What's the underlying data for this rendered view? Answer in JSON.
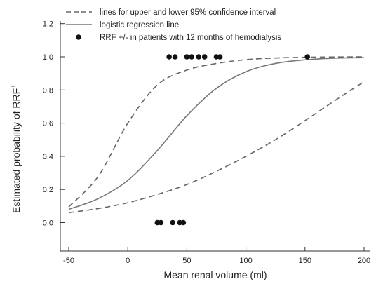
{
  "chart_data": {
    "type": "scatter",
    "title": "",
    "xlabel": "Mean renal volume (ml)",
    "ylabel": {
      "text": "Estimated probability of RRF",
      "superscript": "+"
    },
    "xlim": [
      -50,
      200
    ],
    "ylim": [
      -0.25,
      1.2
    ],
    "x_ticks": [
      "-50",
      "0",
      "50",
      "100",
      "150",
      "200"
    ],
    "y_ticks": [
      "0.0",
      "0.2",
      "0.4",
      "0.6",
      "0.8",
      "1.0",
      "1.2"
    ],
    "grid": false,
    "legend_position": "top-left",
    "legend": [
      {
        "label": "lines for upper and lower 95% confidence interval",
        "style": "dashed"
      },
      {
        "label": "logistic regression line",
        "style": "solid"
      },
      {
        "label": "RRF +/- in patients with 12 months of hemodialysis",
        "style": "marker"
      }
    ],
    "series": [
      {
        "name": "logistic regression line",
        "style": "solid",
        "x": [
          -50,
          -25,
          0,
          25,
          50,
          75,
          100,
          125,
          150,
          175,
          200
        ],
        "y": [
          0.08,
          0.145,
          0.255,
          0.435,
          0.645,
          0.81,
          0.91,
          0.96,
          0.982,
          0.992,
          0.995
        ]
      },
      {
        "name": "upper 95% confidence interval",
        "style": "dashed",
        "x": [
          -50,
          -25,
          0,
          25,
          50,
          75,
          100,
          125,
          150,
          175,
          200
        ],
        "y": [
          0.095,
          0.28,
          0.6,
          0.83,
          0.92,
          0.96,
          0.983,
          0.993,
          0.997,
          0.999,
          1.0
        ]
      },
      {
        "name": "lower 95% confidence interval",
        "style": "dashed",
        "x": [
          -50,
          -25,
          0,
          25,
          50,
          75,
          100,
          125,
          150,
          175,
          200
        ],
        "y": [
          0.06,
          0.085,
          0.12,
          0.17,
          0.23,
          0.31,
          0.4,
          0.5,
          0.615,
          0.735,
          0.85
        ]
      },
      {
        "name": "RRF +/- in patients with 12 months of hemodialysis",
        "style": "marker",
        "x": [
          25,
          28,
          35,
          38,
          40,
          44,
          47,
          50,
          54,
          60,
          65,
          75,
          78,
          152
        ],
        "y": [
          0,
          0,
          1,
          0,
          1,
          0,
          0,
          1,
          1,
          1,
          1,
          1,
          1,
          1
        ]
      }
    ]
  }
}
